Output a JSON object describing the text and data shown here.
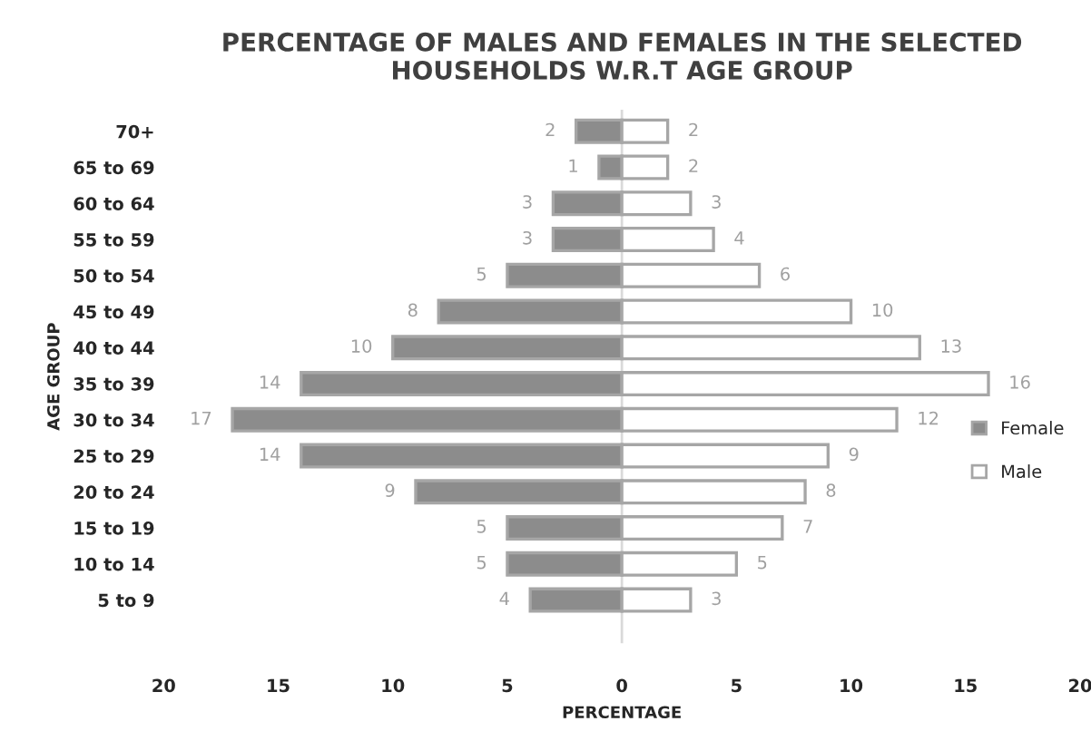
{
  "chart_data": {
    "type": "bar",
    "orientation": "horizontal",
    "title": "PERCENTAGE OF MALES AND FEMALES IN THE SELECTED\nHOUSEHOLDS W.R.T AGE GROUP",
    "xlabel": "PERCENTAGE",
    "ylabel": "AGE GROUP",
    "categories": [
      "70+",
      "65 to 69",
      "60 to 64",
      "55 to 59",
      "50 to 54",
      "45 to 49",
      "40 to 44",
      "35 to 39",
      "30 to 34",
      "25 to 29",
      "20 to 24",
      "15 to 19",
      "10 to 14",
      "5 to 9"
    ],
    "series": [
      {
        "name": "Female",
        "color": "#8c8c8c",
        "base": [
          -2,
          -1,
          -3,
          -3,
          -5,
          -8,
          -10,
          -14,
          -17,
          -14,
          -9,
          -5,
          -5,
          -4
        ],
        "values": [
          2,
          1,
          3,
          3,
          5,
          8,
          10,
          14,
          17,
          14,
          9,
          5,
          5,
          4
        ],
        "value_labels": [
          "2",
          "1",
          "3",
          "3",
          "5",
          "8",
          "10",
          "14",
          "17",
          "14",
          "9",
          "5",
          "5",
          "4"
        ]
      },
      {
        "name": "Male",
        "color": "#ffffff",
        "values": [
          2,
          2,
          3,
          4,
          6,
          10,
          13,
          16,
          12,
          9,
          8,
          7,
          5,
          3
        ],
        "value_labels": [
          "2",
          "2",
          "3",
          "4",
          "6",
          "10",
          "13",
          "16",
          "12",
          "9",
          "8",
          "7",
          "5",
          "3"
        ]
      }
    ],
    "xlim": [
      -20,
      20
    ],
    "xticks": [
      {
        "value": -20,
        "label": "20"
      },
      {
        "value": -15,
        "label": "15"
      },
      {
        "value": -10,
        "label": "10"
      },
      {
        "value": -5,
        "label": "5"
      },
      0,
      5,
      10,
      15,
      20
    ],
    "ref_lines": [
      {
        "axis": "x",
        "value": 0,
        "color": "#d9d9d9"
      }
    ],
    "grid": false,
    "legend": "right"
  }
}
